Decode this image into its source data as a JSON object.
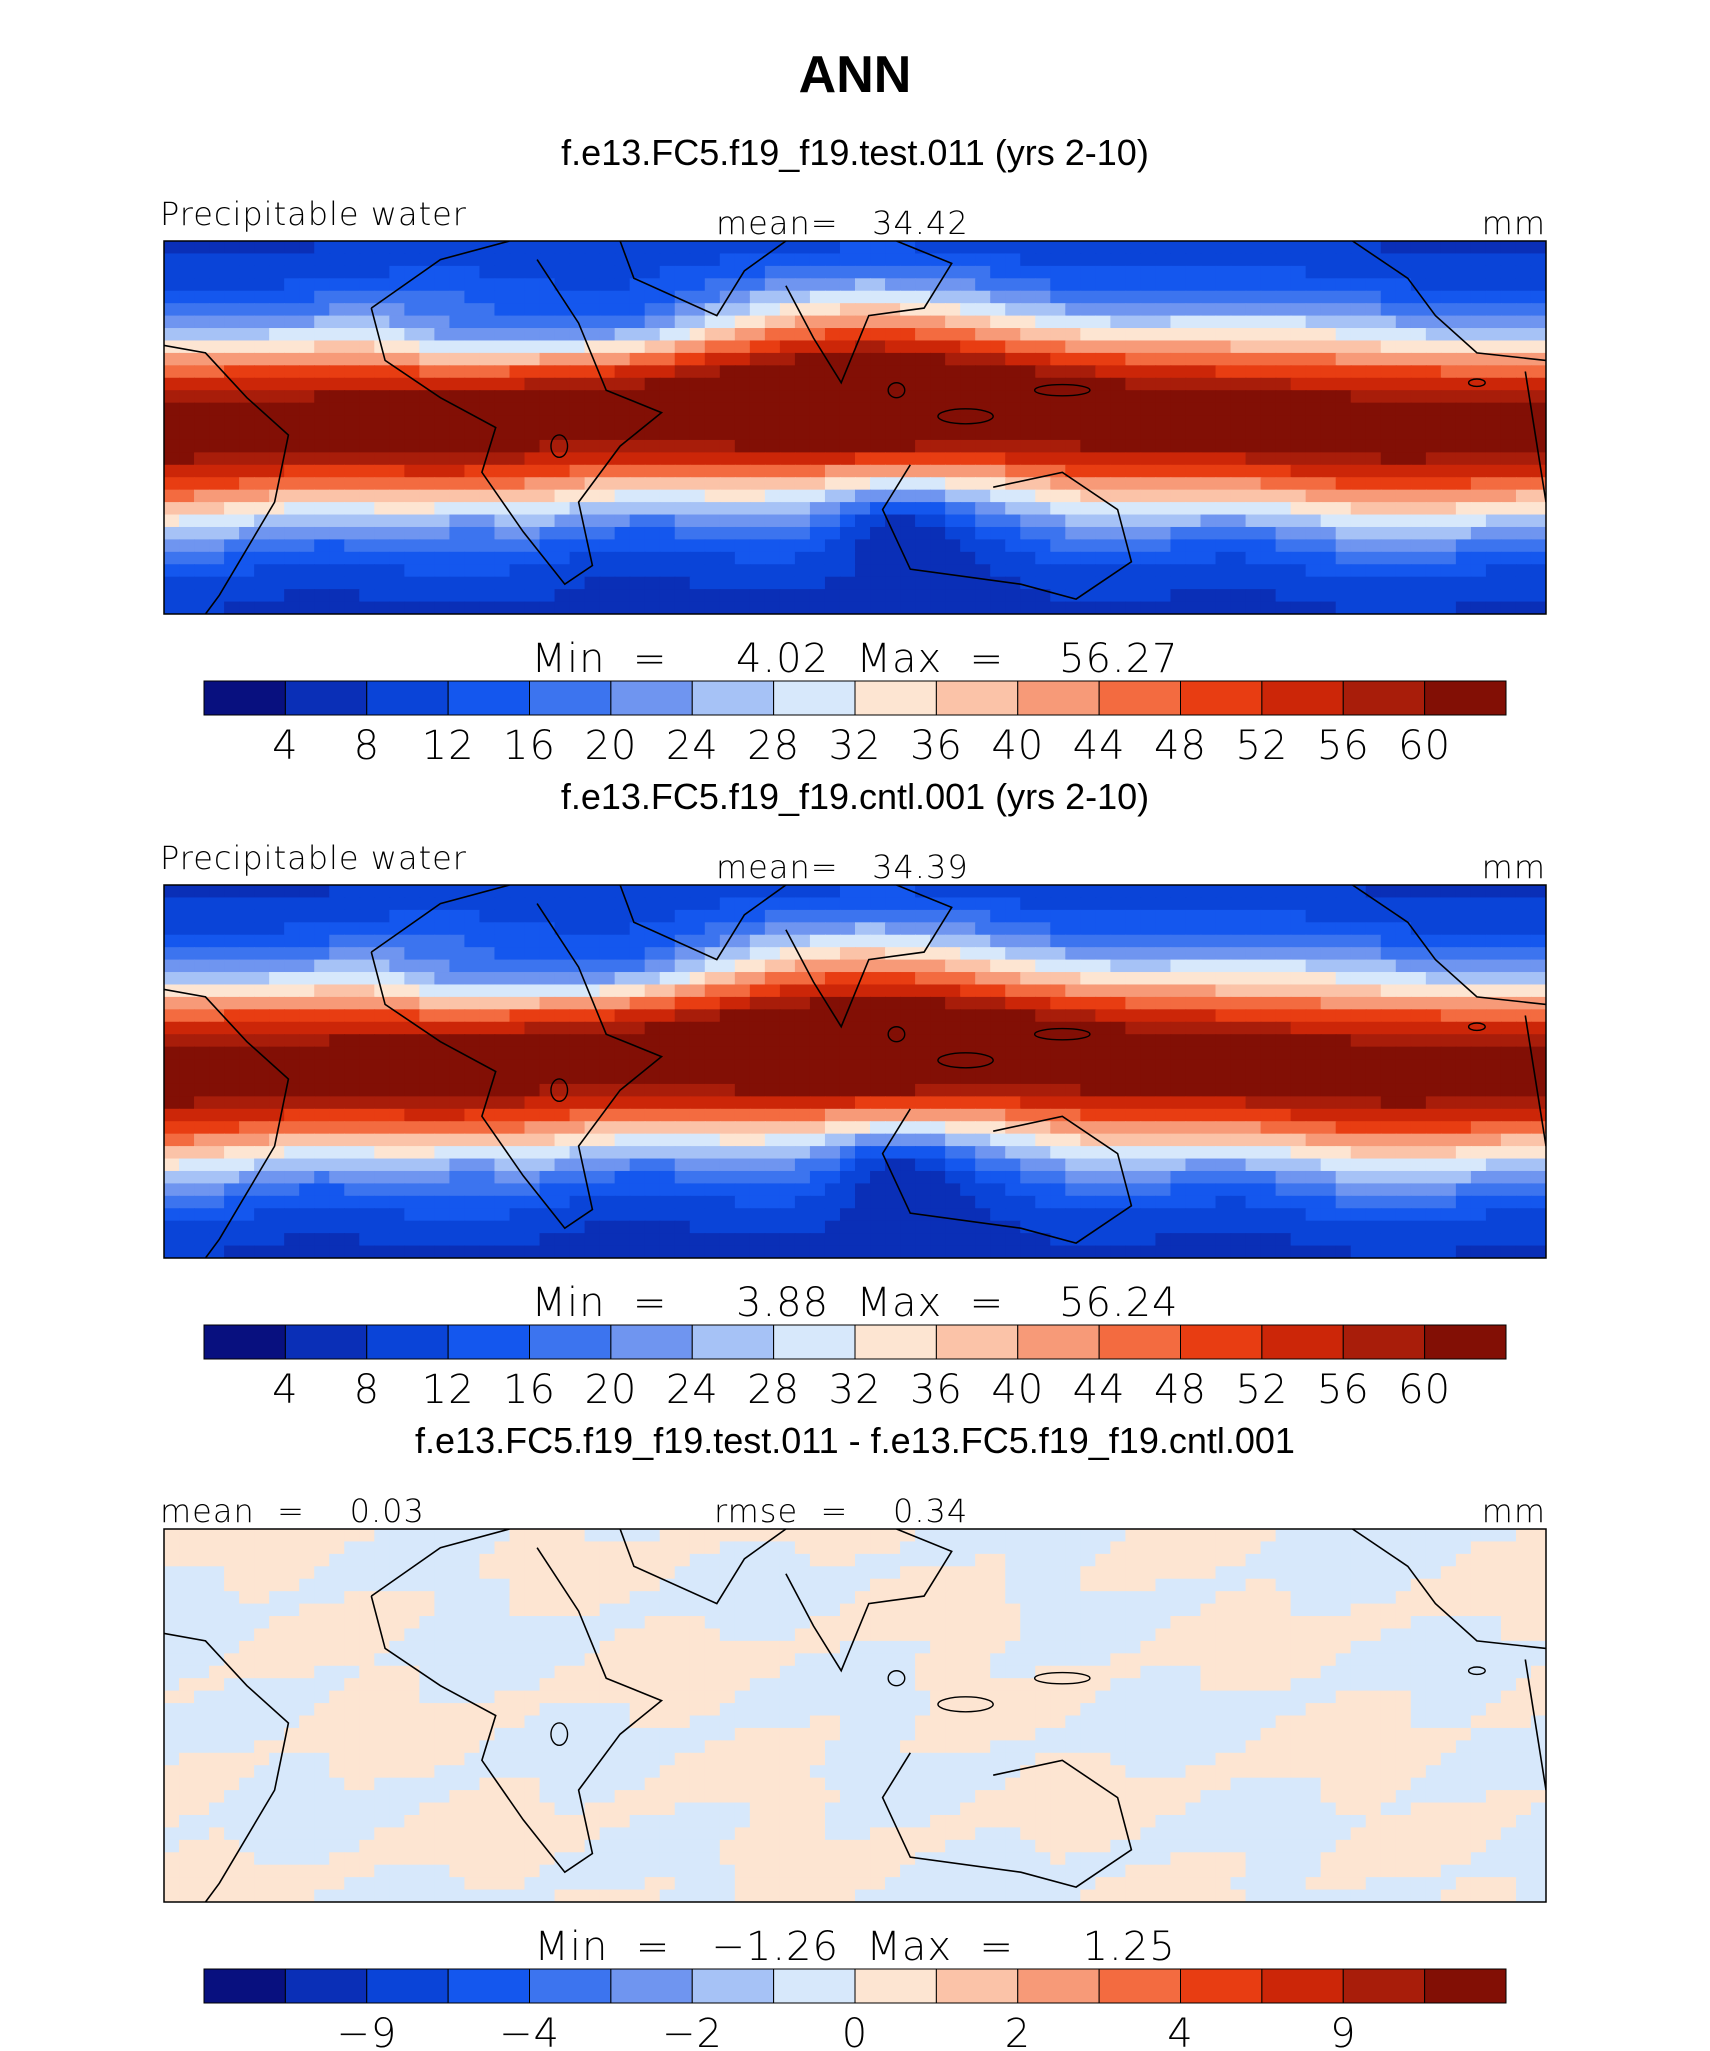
{
  "figure": {
    "title": "ANN",
    "colors": {
      "scale": [
        "#08107f",
        "#0a2fb7",
        "#0a44d8",
        "#1457ee",
        "#3c74ef",
        "#6f95f0",
        "#a6c2f6",
        "#d7e8fb",
        "#fde5d2",
        "#fbc3a8",
        "#f79a78",
        "#f36b40",
        "#e83d12",
        "#cc2608",
        "#a81d0a",
        "#820f05"
      ],
      "coast": "#000000",
      "frame": "#000000"
    },
    "panels": [
      {
        "id": "test",
        "subtitle": "f.e13.FC5.f19_f19.test.011 (yrs 2-10)",
        "left_label": "Precipitable water",
        "center_label": "mean=   34.42",
        "right_label": "mm",
        "stats": "Min  =     4.02  Max  =    56.27",
        "colorbar_ticks": [
          "4",
          "8",
          "12",
          "16",
          "20",
          "24",
          "28",
          "32",
          "36",
          "40",
          "44",
          "48",
          "52",
          "56",
          "60"
        ],
        "field": "mean"
      },
      {
        "id": "cntl",
        "subtitle": "f.e13.FC5.f19_f19.cntl.001 (yrs 2-10)",
        "left_label": "Precipitable water",
        "center_label": "mean=   34.39",
        "right_label": "mm",
        "stats": "Min  =     3.88  Max  =    56.24",
        "colorbar_ticks": [
          "4",
          "8",
          "12",
          "16",
          "20",
          "24",
          "28",
          "32",
          "36",
          "40",
          "44",
          "48",
          "52",
          "56",
          "60"
        ],
        "field": "mean"
      },
      {
        "id": "diff",
        "subtitle": "f.e13.FC5.f19_f19.test.011 - f.e13.FC5.f19_f19.cntl.001",
        "left_label": "mean  =    0.03",
        "center_label": "rmse  =    0.34",
        "right_label": "mm",
        "stats": "Min  =   −1.26  Max  =     1.25",
        "colorbar_ticks": [
          "−9",
          "−4",
          "−2",
          "0",
          "2",
          "4",
          "9"
        ],
        "field": "diff"
      }
    ]
  }
}
